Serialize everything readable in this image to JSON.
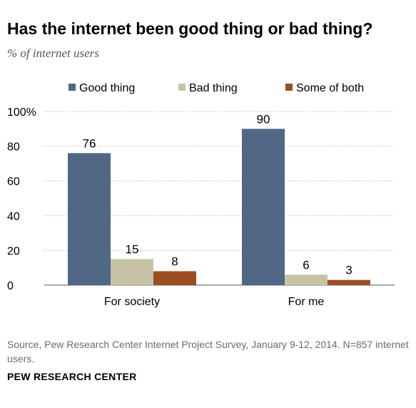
{
  "title": "Has the internet been good thing or bad thing?",
  "subtitle": "% of internet users",
  "colors": {
    "good": "#506886",
    "bad": "#c7c2a5",
    "both": "#9c4e22",
    "grid": "#a6a6a6",
    "text": "#000000"
  },
  "chart_data": {
    "type": "bar",
    "categories": [
      "For society",
      "For me"
    ],
    "series": [
      {
        "name": "Good thing",
        "values": [
          76,
          90
        ]
      },
      {
        "name": "Bad thing",
        "values": [
          15,
          6
        ]
      },
      {
        "name": "Some of both",
        "values": [
          8,
          3
        ]
      }
    ],
    "ylim": [
      0,
      100
    ],
    "yticks": [
      "0",
      "20",
      "40",
      "60",
      "80",
      "100"
    ],
    "ytick_unit": "%",
    "grid": true,
    "legend_position": "top",
    "xlabel": "",
    "ylabel": ""
  },
  "source": "Source, Pew Research Center Internet Project Survey, January 9-12, 2014. N=857 internet users.",
  "brand": "PEW RESEARCH CENTER"
}
